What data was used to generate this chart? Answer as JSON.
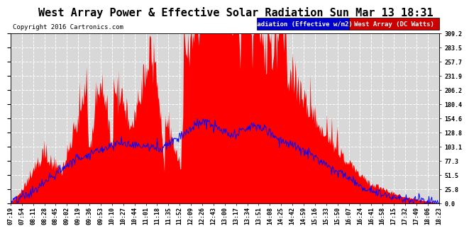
{
  "title": "West Array Power & Effective Solar Radiation Sun Mar 13 18:31",
  "copyright": "Copyright 2016 Cartronics.com",
  "legend_radiation": "Radiation (Effective w/m2)",
  "legend_west": "West Array (DC Watts)",
  "legend_radiation_bg": "#0000cc",
  "legend_west_bg": "#cc0000",
  "bg_color": "#ffffff",
  "plot_bg_color": "#d8d8d8",
  "grid_color": "#ffffff",
  "title_color": "#000000",
  "copyright_color": "#000000",
  "radiation_line_color": "#0000ff",
  "west_fill_color": "#ff0000",
  "ylim": [
    0,
    309.2
  ],
  "yticks_right": [
    0.0,
    25.8,
    51.5,
    77.3,
    103.1,
    128.8,
    154.6,
    180.4,
    206.2,
    231.9,
    257.7,
    283.5,
    309.2
  ],
  "title_fontsize": 11,
  "copyright_fontsize": 6.5,
  "tick_fontsize": 6,
  "legend_fontsize": 6.5,
  "tick_labels": [
    "07:19",
    "07:54",
    "08:11",
    "08:28",
    "08:45",
    "09:02",
    "09:19",
    "09:36",
    "09:53",
    "10:10",
    "10:27",
    "10:44",
    "11:01",
    "11:18",
    "11:35",
    "11:52",
    "12:09",
    "12:26",
    "12:43",
    "13:00",
    "13:17",
    "13:34",
    "13:51",
    "14:08",
    "14:25",
    "14:42",
    "14:59",
    "15:16",
    "15:33",
    "15:50",
    "16:07",
    "16:24",
    "16:41",
    "16:58",
    "17:15",
    "17:32",
    "17:49",
    "18:06",
    "18:23"
  ]
}
